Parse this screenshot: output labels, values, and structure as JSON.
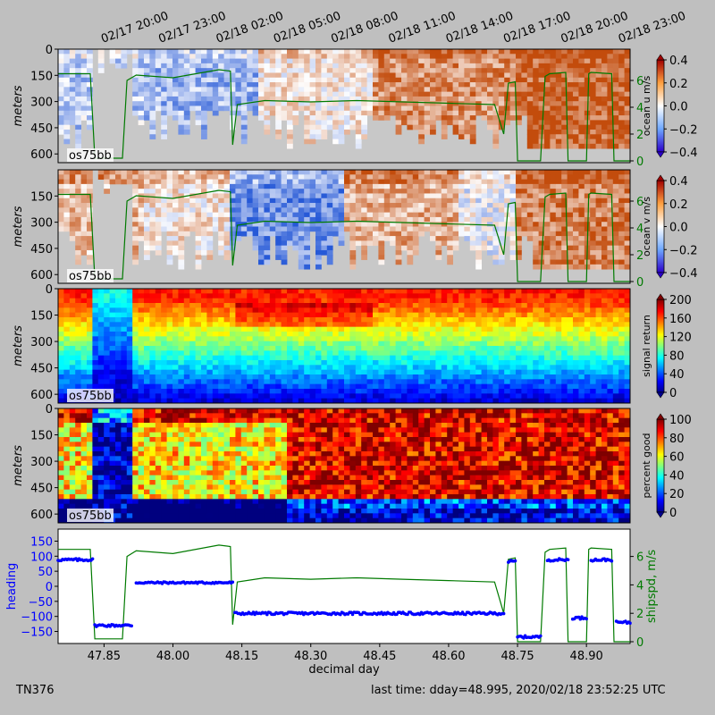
{
  "top_time_labels": [
    "02/17 20:00",
    "02/17 23:00",
    "02/18 02:00",
    "02/18 05:00",
    "02/18 08:00",
    "02/18 11:00",
    "02/18 14:00",
    "02/18 17:00",
    "02/18 20:00",
    "02/18 23:00"
  ],
  "footer": {
    "left": "TN376",
    "right": "last time: dday=48.995,  2020/02/18 23:52:25 UTC"
  },
  "colors": {
    "background": "#bfbfbf",
    "nodata": "#c8c8c8",
    "ship_speed_line": "#007a00",
    "heading_points": "#0000ff"
  },
  "chart_data": [
    {
      "type": "heatmap",
      "name": "ocean u",
      "instrument_label": "os75bb",
      "ylabel": "meters",
      "y_ticks": [
        "0",
        "150",
        "300",
        "450",
        "600"
      ],
      "colorbar_label": "ocean u m/s",
      "colorbar_ticks": [
        "0.4",
        "0.2",
        "0.0",
        "−0.2",
        "−0.4"
      ],
      "colormap": "blue-white-red",
      "right_axis_ticks": [
        "0",
        "2",
        "4",
        "6"
      ],
      "overlay": "ship speed (m/s)"
    },
    {
      "type": "heatmap",
      "name": "ocean v",
      "instrument_label": "os75bb",
      "ylabel": "meters",
      "y_ticks": [
        "150",
        "300",
        "450",
        "600"
      ],
      "colorbar_label": "ocean v m/s",
      "colorbar_ticks": [
        "0.4",
        "0.2",
        "0.0",
        "−0.2",
        "−0.4"
      ],
      "colormap": "blue-white-red",
      "right_axis_ticks": [
        "0",
        "2",
        "4",
        "6"
      ],
      "overlay": "ship speed (m/s)"
    },
    {
      "type": "heatmap",
      "name": "signal return",
      "instrument_label": "os75bb",
      "ylabel": "meters",
      "y_ticks": [
        "0",
        "150",
        "300",
        "450",
        "600"
      ],
      "colorbar_label": "signal return",
      "colorbar_ticks": [
        "200",
        "160",
        "120",
        "80",
        "40",
        "0"
      ],
      "colormap": "jet"
    },
    {
      "type": "heatmap",
      "name": "percent good",
      "instrument_label": "os75bb",
      "ylabel": "meters",
      "y_ticks": [
        "0",
        "150",
        "300",
        "450",
        "600"
      ],
      "colorbar_label": "percent good",
      "colorbar_ticks": [
        "100",
        "80",
        "60",
        "40",
        "20",
        "0"
      ],
      "colormap": "jet"
    },
    {
      "type": "scatter",
      "name": "heading and ship speed",
      "xlabel": "decimal day",
      "x_ticks": [
        "47.85",
        "48.00",
        "48.15",
        "48.30",
        "48.45",
        "48.60",
        "48.75",
        "48.90"
      ],
      "xlim": [
        47.75,
        48.995
      ],
      "ylabel": "heading",
      "y_ticks": [
        "150",
        "100",
        "50",
        "0",
        "−50",
        "−100",
        "−150"
      ],
      "ylim": [
        -190,
        190
      ],
      "y2label": "shipspd, m/s",
      "y2_ticks": [
        "6",
        "4",
        "2",
        "0"
      ],
      "y2lim": [
        0,
        7.8
      ],
      "heading_segments": [
        {
          "x": [
            47.75,
            47.825
          ],
          "y": 88
        },
        {
          "x": [
            47.83,
            47.91
          ],
          "y": -130
        },
        {
          "x": [
            47.92,
            48.13
          ],
          "y": 12
        },
        {
          "x": [
            48.135,
            48.72
          ],
          "y": -90
        },
        {
          "x": [
            48.73,
            48.745
          ],
          "y": 82
        },
        {
          "x": [
            48.75,
            48.8
          ],
          "y": -168
        },
        {
          "x": [
            48.815,
            48.86
          ],
          "y": 88
        },
        {
          "x": [
            48.87,
            48.9
          ],
          "y": -105
        },
        {
          "x": [
            48.91,
            48.955
          ],
          "y": 88
        },
        {
          "x": [
            48.965,
            48.995
          ],
          "y": -120
        }
      ],
      "ship_speed": {
        "x": [
          47.75,
          47.82,
          47.83,
          47.89,
          47.9,
          47.92,
          48.0,
          48.1,
          48.125,
          48.13,
          48.14,
          48.2,
          48.3,
          48.4,
          48.5,
          48.6,
          48.7,
          48.72,
          48.73,
          48.745,
          48.75,
          48.8,
          48.81,
          48.82,
          48.855,
          48.86,
          48.9,
          48.905,
          48.91,
          48.955,
          48.96,
          48.995
        ],
        "y": [
          6.5,
          6.5,
          0.2,
          0.2,
          6.0,
          6.4,
          6.2,
          6.8,
          6.7,
          1.2,
          4.2,
          4.5,
          4.4,
          4.5,
          4.4,
          4.3,
          4.2,
          2.0,
          5.8,
          5.9,
          0.0,
          0.0,
          6.3,
          6.5,
          6.6,
          0.0,
          0.0,
          6.5,
          6.6,
          6.5,
          0.0,
          0.0
        ]
      }
    }
  ]
}
